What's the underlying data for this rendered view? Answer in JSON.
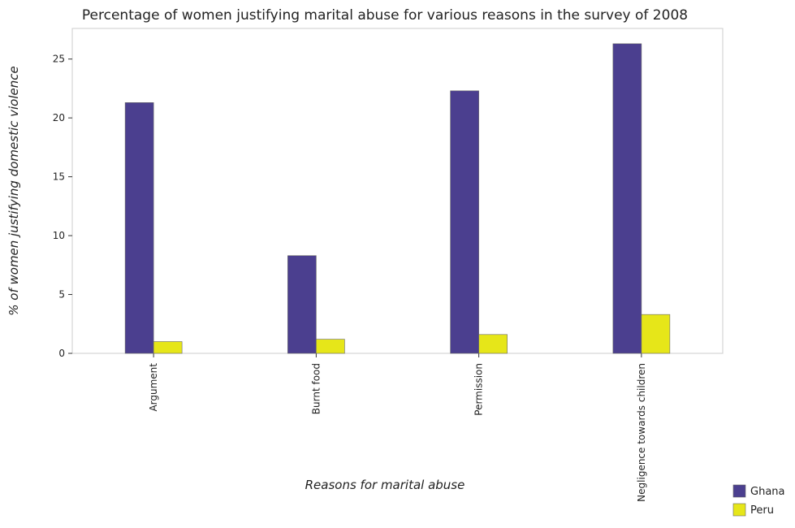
{
  "chart_data": {
    "type": "bar",
    "title": "Percentage of women justifying marital abuse for various reasons in the survey of 2008",
    "xlabel": "Reasons for marital abuse",
    "ylabel": "% of women justifying domestic violence",
    "categories": [
      "Argument",
      "Burnt food",
      "Permission",
      "Negligence towards children"
    ],
    "series": [
      {
        "name": "Ghana",
        "values": [
          21.3,
          8.3,
          22.3,
          26.3
        ],
        "color": "#4b3f8f"
      },
      {
        "name": "Peru",
        "values": [
          1.0,
          1.2,
          1.6,
          3.3
        ],
        "color": "#e6e619"
      }
    ],
    "yticks": [
      0,
      5,
      10,
      15,
      20,
      25
    ],
    "ylim": [
      0,
      27.6
    ],
    "grid": false,
    "legend_position": "bottom-right"
  }
}
